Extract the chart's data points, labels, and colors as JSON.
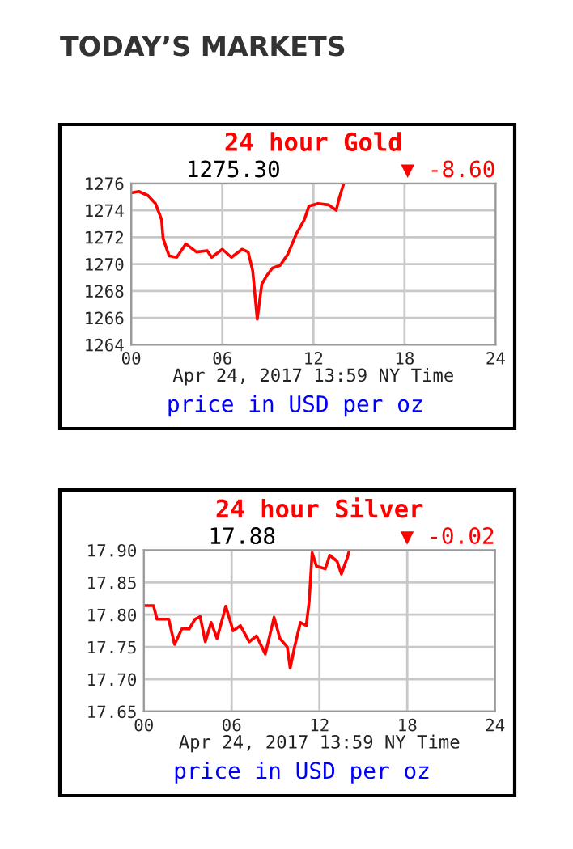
{
  "chart_data": [
    {
      "type": "line",
      "title": "24 hour Gold",
      "xlabel": "Apr 24, 2017 13:59 NY Time",
      "annotations": [
        "1275.30",
        "▼ -8.60",
        "price in USD per oz",
        "TODAY’S MARKETS"
      ],
      "xlim": [
        0,
        24
      ],
      "xticks": [
        {
          "value": 0,
          "label": "00"
        },
        {
          "value": 6,
          "label": "06"
        },
        {
          "value": 12,
          "label": "12"
        },
        {
          "value": 18,
          "label": "18"
        },
        {
          "value": 24,
          "label": "24"
        }
      ],
      "ylim": [
        1264,
        1276
      ],
      "yticks": [
        1264,
        1266,
        1268,
        1270,
        1272,
        1274,
        1276
      ],
      "grid": true,
      "series": [
        {
          "color": "#ff0000",
          "x": [
            0,
            0.5,
            1.1,
            1.6,
            2.0,
            2.1,
            2.5,
            3.0,
            3.6,
            4.3,
            5.0,
            5.3,
            6.0,
            6.6,
            7.3,
            7.7,
            8.0,
            8.3,
            8.6,
            8.9,
            9.3,
            9.8,
            10.3,
            10.9,
            11.4,
            11.7,
            12.3,
            13.0,
            13.5,
            13.7,
            14.0
          ],
          "values": [
            1275.3,
            1275.4,
            1275.1,
            1274.5,
            1273.3,
            1271.9,
            1270.6,
            1270.5,
            1271.5,
            1270.9,
            1271.0,
            1270.5,
            1271.1,
            1270.5,
            1271.1,
            1270.9,
            1269.5,
            1265.9,
            1268.5,
            1269.1,
            1269.7,
            1269.9,
            1270.7,
            1272.3,
            1273.3,
            1274.3,
            1274.5,
            1274.4,
            1274.0,
            1274.9,
            1276.0
          ]
        }
      ]
    },
    {
      "type": "line",
      "title": "24 hour Silver",
      "xlabel": "Apr 24, 2017 13:59 NY Time",
      "annotations": [
        "17.88",
        "▼ -0.02",
        "price in USD per oz"
      ],
      "xlim": [
        0,
        24
      ],
      "xticks": [
        {
          "value": 0,
          "label": "00"
        },
        {
          "value": 6,
          "label": "06"
        },
        {
          "value": 12,
          "label": "12"
        },
        {
          "value": 18,
          "label": "18"
        },
        {
          "value": 24,
          "label": "24"
        }
      ],
      "ylim": [
        17.65,
        17.9
      ],
      "yticks": [
        {
          "value": 17.65,
          "label": "17.65"
        },
        {
          "value": 17.7,
          "label": "17.70"
        },
        {
          "value": 17.75,
          "label": "17.75"
        },
        {
          "value": 17.8,
          "label": "17.80"
        },
        {
          "value": 17.85,
          "label": "17.85"
        },
        {
          "value": 17.9,
          "label": "17.90"
        }
      ],
      "grid": true,
      "series": [
        {
          "color": "#ff0000",
          "x": [
            0,
            0.66,
            0.9,
            1.7,
            2.1,
            2.6,
            3.1,
            3.5,
            3.85,
            4.2,
            4.6,
            5.0,
            5.6,
            6.1,
            6.6,
            7.2,
            7.7,
            8.3,
            8.9,
            9.3,
            9.8,
            10.0,
            10.3,
            10.7,
            11.1,
            11.3,
            11.5,
            11.8,
            12.4,
            12.7,
            13.2,
            13.5,
            13.9,
            14.0
          ],
          "values": [
            17.814,
            17.814,
            17.793,
            17.793,
            17.754,
            17.778,
            17.778,
            17.793,
            17.797,
            17.758,
            17.788,
            17.763,
            17.813,
            17.775,
            17.783,
            17.758,
            17.767,
            17.739,
            17.796,
            17.763,
            17.75,
            17.717,
            17.75,
            17.788,
            17.783,
            17.821,
            17.896,
            17.875,
            17.871,
            17.892,
            17.883,
            17.863,
            17.888,
            17.896
          ]
        }
      ]
    }
  ]
}
